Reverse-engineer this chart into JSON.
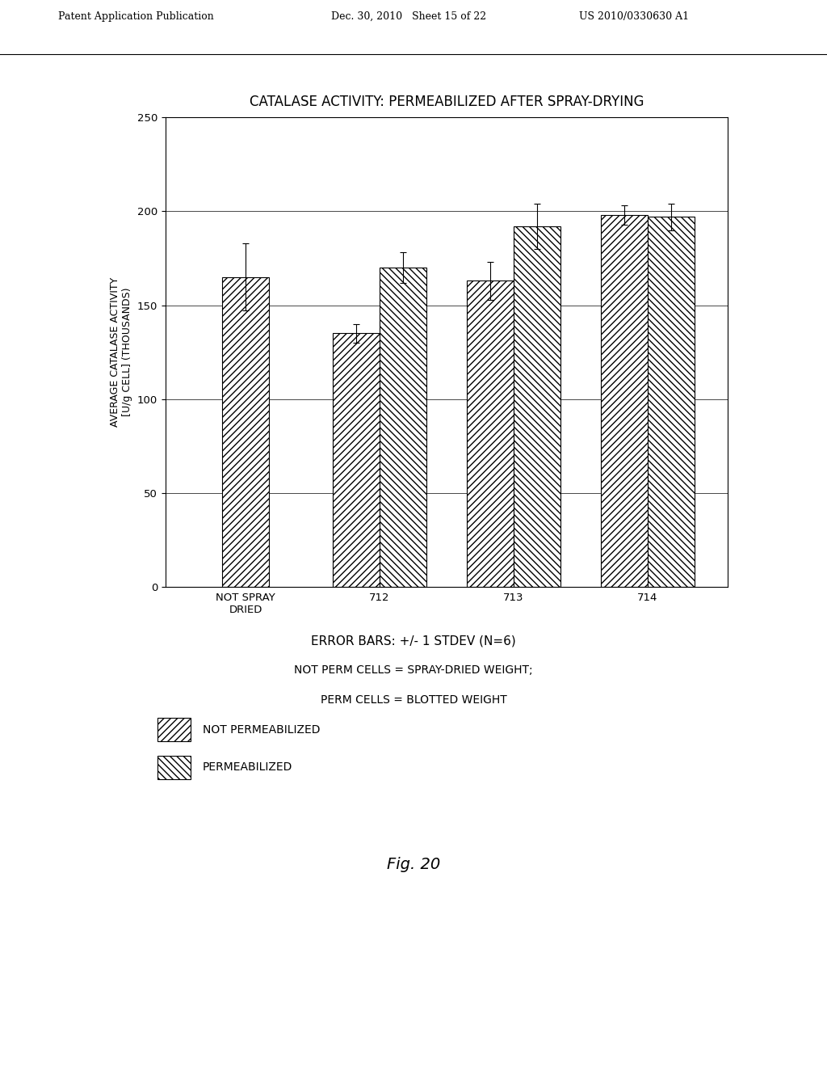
{
  "title": "CATALASE ACTIVITY: PERMEABILIZED AFTER SPRAY-DRYING",
  "ylabel_line1": "AVERAGE CATALASE ACTIVITY",
  "ylabel_line2": "[U/g CELL] (THOUSANDS)",
  "categories": [
    "NOT SPRAY\nDRIED",
    "712",
    "713",
    "714"
  ],
  "not_perm_values": [
    165,
    135,
    163,
    198
  ],
  "not_perm_errors": [
    18,
    5,
    10,
    5
  ],
  "perm_values": [
    null,
    170,
    192,
    197
  ],
  "perm_errors": [
    null,
    8,
    12,
    7
  ],
  "ylim": [
    0,
    250
  ],
  "yticks": [
    0,
    50,
    100,
    150,
    200,
    250
  ],
  "bar_width": 0.35,
  "note_line1": "ERROR BARS: +/- 1 STDEV (N=6)",
  "note_line2": "NOT PERM CELLS = SPRAY-DRIED WEIGHT;",
  "note_line3": "PERM CELLS = BLOTTED WEIGHT",
  "legend_not_perm": "NOT PERMEABILIZED",
  "legend_perm": "PERMEABILIZED",
  "bg_color": "#ffffff",
  "header_left": "Patent Application Publication",
  "header_mid": "Dec. 30, 2010   Sheet 15 of 22",
  "header_right": "US 2010/0330630 A1",
  "fig_label": "Fig. 20"
}
